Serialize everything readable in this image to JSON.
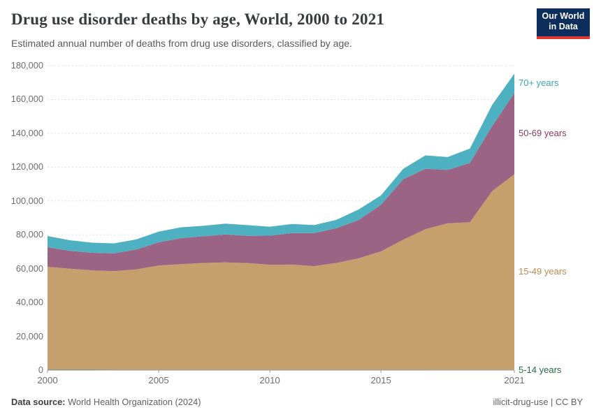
{
  "header": {
    "title": "Drug use disorder deaths by age, World, 2000 to 2021",
    "subtitle": "Estimated annual number of deaths from drug use disorders, classified by age.",
    "logo": {
      "line1": "Our World",
      "line2": "in Data",
      "bg_color": "#0d2e5c",
      "accent_color": "#e0362c"
    }
  },
  "footer": {
    "data_source_label": "Data source:",
    "data_source_value": " World Health Organization (2024)",
    "right_text": "illicit-drug-use | CC BY"
  },
  "chart_data": {
    "type": "area",
    "stacked": true,
    "title": "Drug use disorder deaths by age, World, 2000 to 2021",
    "xlabel": "",
    "ylabel": "",
    "grid": "horizontal-dashed",
    "legend_position": "right-of-plot",
    "x_range": [
      2000,
      2021
    ],
    "ylim": [
      0,
      180000
    ],
    "x": [
      2000,
      2001,
      2002,
      2003,
      2004,
      2005,
      2006,
      2007,
      2008,
      2009,
      2010,
      2011,
      2012,
      2013,
      2014,
      2015,
      2016,
      2017,
      2018,
      2019,
      2020,
      2021
    ],
    "series": [
      {
        "name": "5-14 years",
        "color": "#2c6e49",
        "label_color": "#266d42",
        "values": [
          380,
          370,
          360,
          350,
          340,
          330,
          320,
          310,
          300,
          300,
          290,
          290,
          280,
          280,
          280,
          270,
          270,
          270,
          260,
          260,
          260,
          260
        ]
      },
      {
        "name": "15-49 years",
        "color": "#c6a06c",
        "label_color": "#bd8b51",
        "values": [
          60700,
          59600,
          58600,
          58200,
          59200,
          61500,
          62300,
          63000,
          63400,
          63000,
          62000,
          62100,
          61200,
          63100,
          65800,
          69900,
          76800,
          83000,
          86500,
          87200,
          105500,
          115500
        ]
      },
      {
        "name": "50-69 years",
        "color": "#9c6484",
        "label_color": "#8d3c61",
        "values": [
          11600,
          10600,
          10400,
          10500,
          11800,
          13700,
          15400,
          15800,
          16500,
          16100,
          17200,
          18600,
          19500,
          20600,
          22700,
          27600,
          35800,
          35800,
          31600,
          35000,
          38500,
          48000
        ]
      },
      {
        "name": "70+ years",
        "color": "#4eb1c2",
        "label_color": "#3fa3b6",
        "values": [
          6600,
          6200,
          6000,
          5900,
          6000,
          6300,
          6400,
          6200,
          6400,
          6300,
          5300,
          5400,
          4800,
          4900,
          6200,
          5500,
          6100,
          7900,
          7600,
          8500,
          12500,
          11500
        ]
      }
    ],
    "y_ticks": [
      {
        "value": 0,
        "label": "0"
      },
      {
        "value": 20000,
        "label": "20,000"
      },
      {
        "value": 40000,
        "label": "40,000"
      },
      {
        "value": 60000,
        "label": "60,000"
      },
      {
        "value": 80000,
        "label": "80,000"
      },
      {
        "value": 100000,
        "label": "100,000"
      },
      {
        "value": 120000,
        "label": "120,000"
      },
      {
        "value": 140000,
        "label": "140,000"
      },
      {
        "value": 160000,
        "label": "160,000"
      },
      {
        "value": 180000,
        "label": "180,000"
      }
    ],
    "x_ticks": [
      {
        "value": 2000,
        "label": "2000"
      },
      {
        "value": 2005,
        "label": "2005"
      },
      {
        "value": 2010,
        "label": "2010"
      },
      {
        "value": 2015,
        "label": "2015"
      },
      {
        "value": 2021,
        "label": "2021"
      }
    ]
  }
}
